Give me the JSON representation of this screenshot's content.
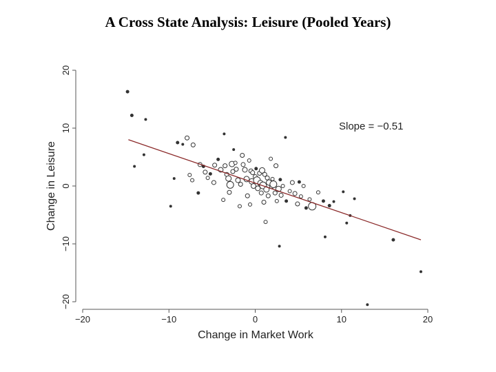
{
  "slide": {
    "title": "A Cross State Analysis:  Leisure (Pooled Years)"
  },
  "chart_data": {
    "type": "scatter",
    "title": "A Cross State Analysis:  Leisure (Pooled Years)",
    "xlabel": "Change in Market Work",
    "ylabel": "Change in Leisure",
    "xlim": [
      -20,
      20
    ],
    "ylim": [
      -20,
      20
    ],
    "xticks": [
      -20,
      -10,
      0,
      10,
      20
    ],
    "yticks": [
      -20,
      -10,
      0,
      10,
      20
    ],
    "xtick_labels": [
      "−20",
      "−10",
      "0",
      "10",
      "20"
    ],
    "ytick_labels": [
      "−20",
      "−10",
      "0",
      "10",
      "20"
    ],
    "annotation": "Slope = −0.51",
    "grid": false,
    "colors": {
      "points": "#333333",
      "fit_line": "#8b2a2a",
      "axes": "#555555"
    },
    "fit_line": {
      "slope": -0.51,
      "x": [
        -14.7,
        19.2
      ],
      "y": [
        8.0,
        -9.3
      ]
    },
    "points": [
      {
        "x": -14.8,
        "y": 16.3,
        "s": 2
      },
      {
        "x": -14.3,
        "y": 12.2,
        "s": 2
      },
      {
        "x": -12.7,
        "y": 11.5,
        "s": 1.5
      },
      {
        "x": -14.0,
        "y": 3.4,
        "s": 1.5
      },
      {
        "x": -12.9,
        "y": 5.4,
        "s": 1.5
      },
      {
        "x": -9.8,
        "y": -3.5,
        "s": 1.5
      },
      {
        "x": -9.4,
        "y": 1.3,
        "s": 1.5
      },
      {
        "x": -9.0,
        "y": 7.5,
        "s": 2
      },
      {
        "x": -8.4,
        "y": 7.2,
        "s": 1.5
      },
      {
        "x": -7.9,
        "y": 8.3,
        "s": 3
      },
      {
        "x": -7.2,
        "y": 7.1,
        "s": 3
      },
      {
        "x": -7.6,
        "y": 1.9,
        "s": 2.5
      },
      {
        "x": -7.3,
        "y": 1.0,
        "s": 2.5
      },
      {
        "x": -6.6,
        "y": -1.2,
        "s": 2
      },
      {
        "x": -6.4,
        "y": 3.7,
        "s": 3
      },
      {
        "x": -6.0,
        "y": 3.4,
        "s": 2
      },
      {
        "x": -5.8,
        "y": 2.4,
        "s": 3
      },
      {
        "x": -5.5,
        "y": 1.4,
        "s": 2.5
      },
      {
        "x": -5.2,
        "y": 2.1,
        "s": 2
      },
      {
        "x": -4.8,
        "y": 0.6,
        "s": 3
      },
      {
        "x": -4.7,
        "y": 3.6,
        "s": 3
      },
      {
        "x": -4.3,
        "y": 4.6,
        "s": 2
      },
      {
        "x": -4.0,
        "y": 2.8,
        "s": 3.5
      },
      {
        "x": -3.7,
        "y": -2.4,
        "s": 2.5
      },
      {
        "x": -3.6,
        "y": 9.0,
        "s": 1.5
      },
      {
        "x": -3.5,
        "y": 3.5,
        "s": 3
      },
      {
        "x": -3.3,
        "y": 2.0,
        "s": 3
      },
      {
        "x": -3.1,
        "y": 1.3,
        "s": 4
      },
      {
        "x": -3.0,
        "y": -1.1,
        "s": 3
      },
      {
        "x": -2.9,
        "y": 0.2,
        "s": 5
      },
      {
        "x": -2.7,
        "y": 3.8,
        "s": 4
      },
      {
        "x": -2.6,
        "y": 2.5,
        "s": 3
      },
      {
        "x": -2.5,
        "y": 6.3,
        "s": 1.5
      },
      {
        "x": -2.3,
        "y": 4.0,
        "s": 2.5
      },
      {
        "x": -2.2,
        "y": 2.9,
        "s": 3
      },
      {
        "x": -2.0,
        "y": 1.0,
        "s": 3.5
      },
      {
        "x": -1.8,
        "y": -3.5,
        "s": 2.5
      },
      {
        "x": -1.7,
        "y": 0.3,
        "s": 3
      },
      {
        "x": -1.5,
        "y": 5.3,
        "s": 3
      },
      {
        "x": -1.4,
        "y": 3.7,
        "s": 3
      },
      {
        "x": -1.2,
        "y": 2.8,
        "s": 3.5
      },
      {
        "x": -1.0,
        "y": 1.2,
        "s": 4
      },
      {
        "x": -0.9,
        "y": -1.7,
        "s": 3
      },
      {
        "x": -0.7,
        "y": 4.4,
        "s": 2.5
      },
      {
        "x": -0.6,
        "y": -3.2,
        "s": 2.5
      },
      {
        "x": -0.5,
        "y": 2.6,
        "s": 3
      },
      {
        "x": -0.4,
        "y": 0.8,
        "s": 4
      },
      {
        "x": -0.3,
        "y": 2.3,
        "s": 3
      },
      {
        "x": -0.2,
        "y": 0.0,
        "s": 3.5
      },
      {
        "x": 0.0,
        "y": 1.6,
        "s": 3
      },
      {
        "x": 0.1,
        "y": 3.0,
        "s": 2
      },
      {
        "x": 0.2,
        "y": 1.0,
        "s": 5
      },
      {
        "x": 0.3,
        "y": -0.4,
        "s": 3.5
      },
      {
        "x": 0.5,
        "y": 2.2,
        "s": 3
      },
      {
        "x": 0.6,
        "y": 0.5,
        "s": 4
      },
      {
        "x": 0.7,
        "y": -1.2,
        "s": 3
      },
      {
        "x": 0.8,
        "y": 2.7,
        "s": 4
      },
      {
        "x": 0.9,
        "y": 0.1,
        "s": 5
      },
      {
        "x": 1.0,
        "y": -2.8,
        "s": 3
      },
      {
        "x": 1.1,
        "y": 2.0,
        "s": 3
      },
      {
        "x": 1.2,
        "y": -6.2,
        "s": 2.5
      },
      {
        "x": 1.3,
        "y": -0.6,
        "s": 4
      },
      {
        "x": 1.4,
        "y": 1.4,
        "s": 3
      },
      {
        "x": 1.5,
        "y": -1.7,
        "s": 3
      },
      {
        "x": 1.6,
        "y": 0.6,
        "s": 4
      },
      {
        "x": 1.8,
        "y": 4.7,
        "s": 2.5
      },
      {
        "x": 1.9,
        "y": -0.1,
        "s": 3
      },
      {
        "x": 2.0,
        "y": 1.2,
        "s": 2.5
      },
      {
        "x": 2.1,
        "y": 0.3,
        "s": 5
      },
      {
        "x": 2.3,
        "y": -1.2,
        "s": 3
      },
      {
        "x": 2.4,
        "y": 3.5,
        "s": 3
      },
      {
        "x": 2.5,
        "y": -2.6,
        "s": 2.5
      },
      {
        "x": 2.7,
        "y": -0.5,
        "s": 4
      },
      {
        "x": 2.8,
        "y": -10.4,
        "s": 1.5
      },
      {
        "x": 2.9,
        "y": 1.1,
        "s": 2
      },
      {
        "x": 3.0,
        "y": -1.6,
        "s": 3
      },
      {
        "x": 3.2,
        "y": 0.0,
        "s": 2.5
      },
      {
        "x": 3.5,
        "y": 8.4,
        "s": 1.5
      },
      {
        "x": 3.6,
        "y": -2.6,
        "s": 2
      },
      {
        "x": 4.0,
        "y": -0.9,
        "s": 2.5
      },
      {
        "x": 4.3,
        "y": 0.6,
        "s": 3
      },
      {
        "x": 4.6,
        "y": -1.3,
        "s": 3
      },
      {
        "x": 4.9,
        "y": -3.1,
        "s": 3
      },
      {
        "x": 5.1,
        "y": 0.7,
        "s": 2
      },
      {
        "x": 5.3,
        "y": -1.8,
        "s": 2.5
      },
      {
        "x": 5.6,
        "y": 0.0,
        "s": 2.5
      },
      {
        "x": 5.9,
        "y": -3.8,
        "s": 2
      },
      {
        "x": 6.3,
        "y": -2.3,
        "s": 2.5
      },
      {
        "x": 6.6,
        "y": -3.5,
        "s": 5.5
      },
      {
        "x": 7.3,
        "y": -1.1,
        "s": 2.5
      },
      {
        "x": 7.9,
        "y": -2.6,
        "s": 2
      },
      {
        "x": 8.1,
        "y": -8.8,
        "s": 1.5
      },
      {
        "x": 8.6,
        "y": -3.4,
        "s": 2
      },
      {
        "x": 9.1,
        "y": -2.7,
        "s": 1.5
      },
      {
        "x": 10.2,
        "y": -1.0,
        "s": 1.5
      },
      {
        "x": 10.6,
        "y": -6.4,
        "s": 1.5
      },
      {
        "x": 11.0,
        "y": -5.1,
        "s": 1.5
      },
      {
        "x": 11.5,
        "y": -2.2,
        "s": 1.5
      },
      {
        "x": 13.0,
        "y": -20.5,
        "s": 1.5
      },
      {
        "x": 16.0,
        "y": -9.3,
        "s": 2
      },
      {
        "x": 19.2,
        "y": -14.8,
        "s": 1.5
      }
    ]
  }
}
